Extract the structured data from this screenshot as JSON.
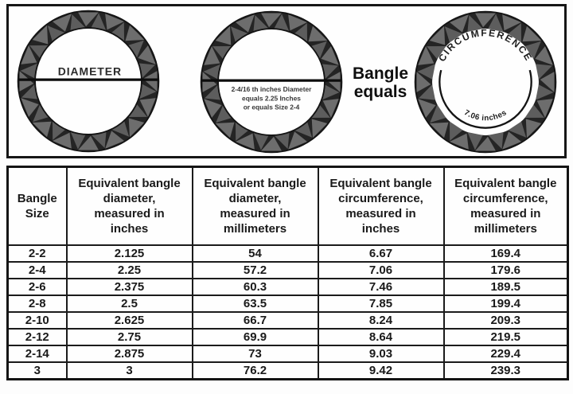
{
  "illustrations": {
    "bangle_diameter": {
      "label": "DIAMETER"
    },
    "bangle_size_example": {
      "caption_line1": "2-4/16 th inches Diameter",
      "caption_line2": "equals 2.25 Inches",
      "caption_line3": "or equals Size 2-4"
    },
    "equals_line1": "Bangle",
    "equals_line2": "equals",
    "bangle_circumference": {
      "arc_label": "CIRCUMFERENCE",
      "measure_label": "7.06 inches"
    }
  },
  "table": {
    "headers": [
      "Bangle\nSize",
      "Equivalent bangle\ndiameter,\nmeasured in\ninches",
      "Equivalent bangle\ndiameter,\nmeasured in\nmillimeters",
      "Equivalent bangle\ncircumference,\nmeasured in\ninches",
      "Equivalent bangle\ncircumference,\nmeasured in\nmillimeters"
    ],
    "rows": [
      [
        "2-2",
        "2.125",
        "54",
        "6.67",
        "169.4"
      ],
      [
        "2-4",
        "2.25",
        "57.2",
        "7.06",
        "179.6"
      ],
      [
        "2-6",
        "2.375",
        "60.3",
        "7.46",
        "189.5"
      ],
      [
        "2-8",
        "2.5",
        "63.5",
        "7.85",
        "199.4"
      ],
      [
        "2-10",
        "2.625",
        "66.7",
        "8.24",
        "209.3"
      ],
      [
        "2-12",
        "2.75",
        "69.9",
        "8.64",
        "219.5"
      ],
      [
        "2-14",
        "2.875",
        "73",
        "9.03",
        "229.4"
      ],
      [
        "3",
        "3",
        "76.2",
        "9.42",
        "239.3"
      ]
    ]
  },
  "chart_data": {
    "type": "table",
    "columns": [
      "Bangle Size",
      "Equivalent bangle diameter, measured in inches",
      "Equivalent bangle diameter, measured in millimeters",
      "Equivalent bangle circumference, measured in inches",
      "Equivalent bangle circumference, measured in millimeters"
    ],
    "rows": [
      [
        "2-2",
        2.125,
        54,
        6.67,
        169.4
      ],
      [
        "2-4",
        2.25,
        57.2,
        7.06,
        179.6
      ],
      [
        "2-6",
        2.375,
        60.3,
        7.46,
        189.5
      ],
      [
        "2-8",
        2.5,
        63.5,
        7.85,
        199.4
      ],
      [
        "2-10",
        2.625,
        66.7,
        8.24,
        209.3
      ],
      [
        "2-12",
        2.75,
        69.9,
        8.64,
        219.5
      ],
      [
        "2-14",
        2.875,
        73,
        9.03,
        229.4
      ],
      [
        "3",
        3,
        76.2,
        9.42,
        239.3
      ]
    ],
    "annotations": [
      "DIAMETER",
      "2-4/16 th inches Diameter equals 2.25 Inches or equals Size 2-4",
      "Bangle equals",
      "CIRCUMFERENCE",
      "7.06 inches"
    ]
  },
  "colors": {
    "ring_dark": "#242424",
    "ring_accent": "#6d6d6d",
    "ring_accent2": "#5d5d5d",
    "edge_line": "#141414",
    "table_border": "#1b1b1b",
    "text": "#1c1c1c",
    "background": "#fefefe"
  }
}
